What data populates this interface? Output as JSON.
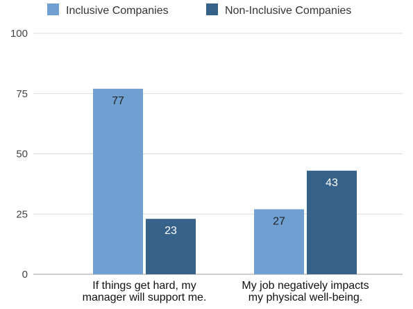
{
  "chart_data": {
    "type": "bar",
    "categories": [
      [
        "If things get hard, my",
        "manager will support me."
      ],
      [
        "My job negatively impacts",
        "my physical well-being."
      ]
    ],
    "series": [
      {
        "name": "Inclusive Companies",
        "color": "#6fa0d1",
        "values": [
          77,
          27
        ],
        "label_color": "#222222"
      },
      {
        "name": "Non-Inclusive Companies",
        "color": "#36628a",
        "values": [
          23,
          43
        ],
        "label_color": "#ffffff"
      }
    ],
    "ylim": [
      0,
      100
    ],
    "yticks": [
      0,
      25,
      50,
      75,
      100
    ],
    "grid": true,
    "legend_position": "top"
  }
}
